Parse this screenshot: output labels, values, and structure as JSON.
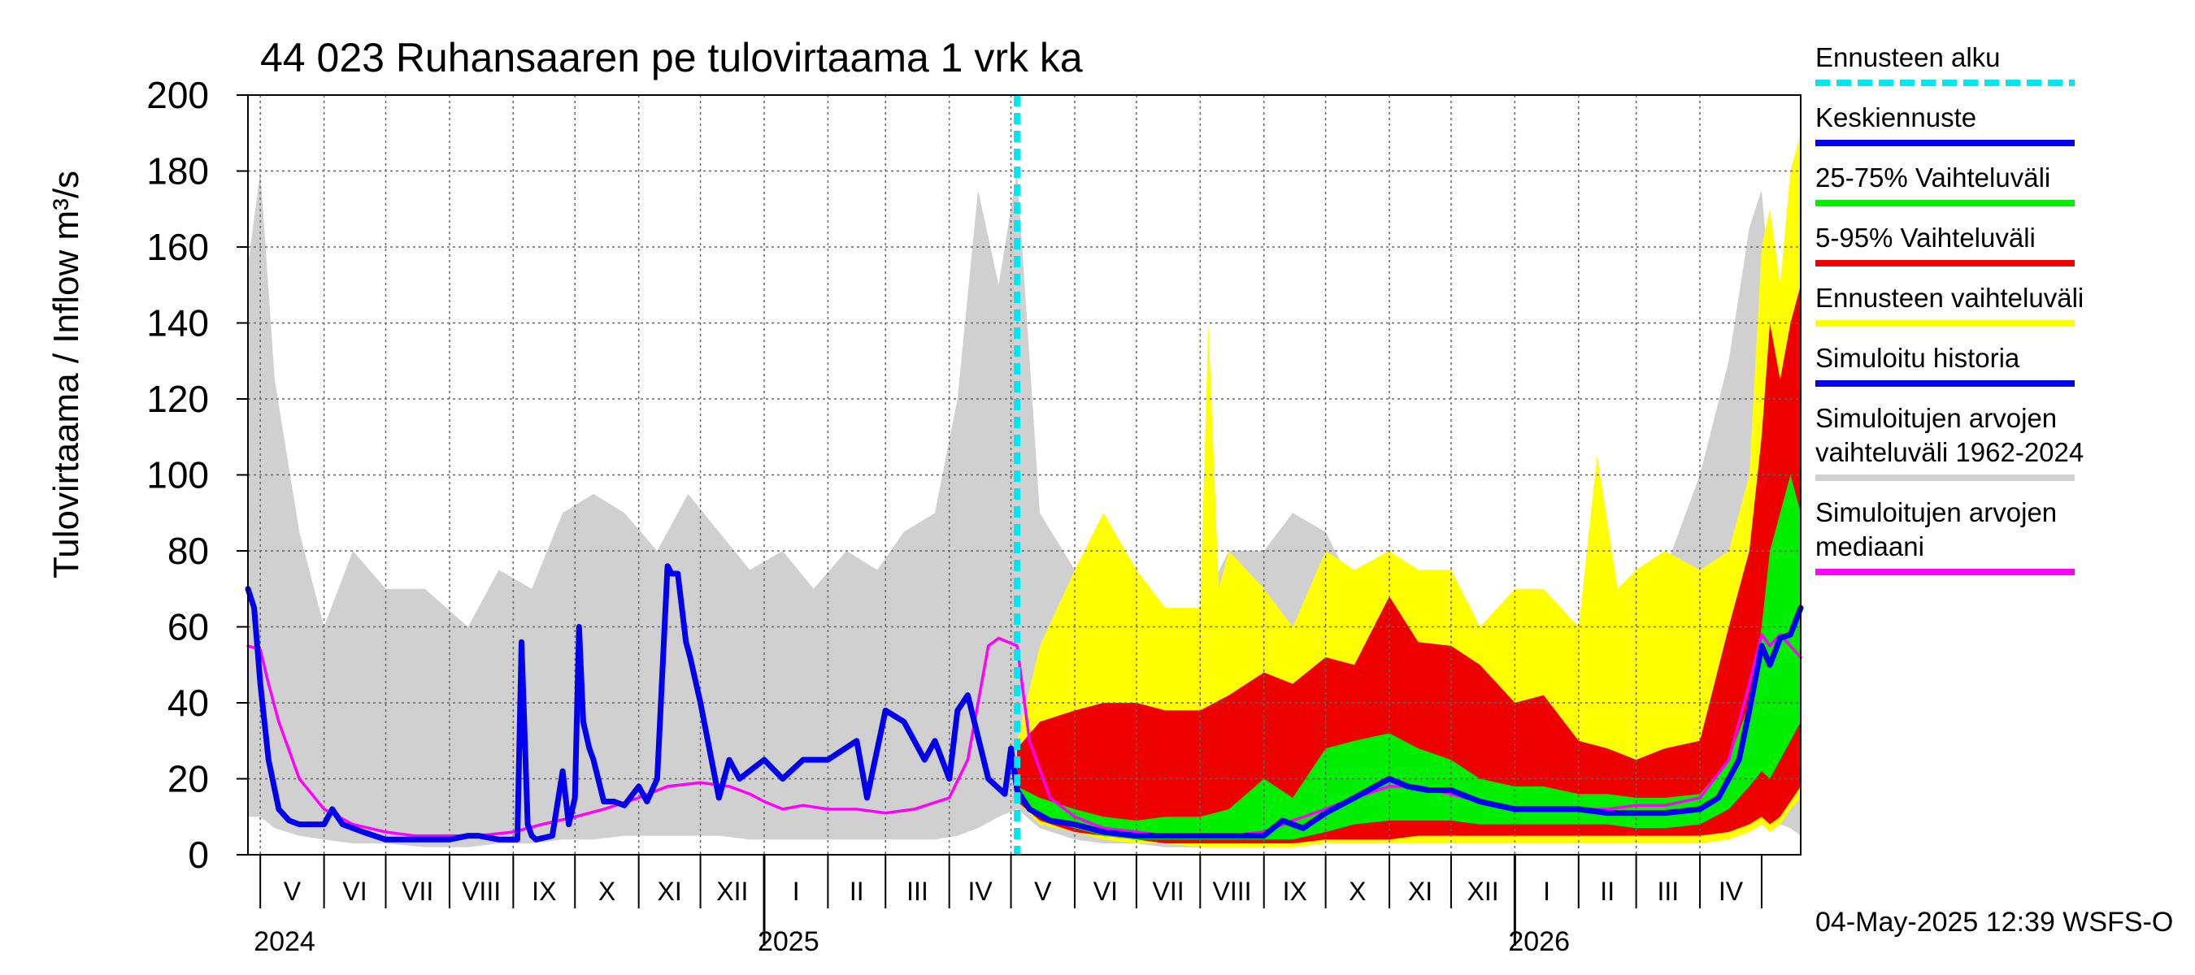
{
  "chart_data": {
    "type": "area",
    "title": "44 023 Ruhansaaren pe tulovirtaama 1 vrk ka",
    "ylabel": "Tulovirtaama / Inflow    m³/s",
    "ylim": [
      0,
      200
    ],
    "yticks": [
      0,
      20,
      40,
      60,
      80,
      100,
      120,
      140,
      160,
      180,
      200
    ],
    "xlim": [
      "2024-04-25",
      "2026-05-20"
    ],
    "grid": true,
    "forecast_start": "2025-05-04",
    "months": [
      {
        "label": "V",
        "start": "2024-05-01"
      },
      {
        "label": "VI",
        "start": "2024-06-01"
      },
      {
        "label": "VII",
        "start": "2024-07-01"
      },
      {
        "label": "VIII",
        "start": "2024-08-01"
      },
      {
        "label": "IX",
        "start": "2024-09-01"
      },
      {
        "label": "X",
        "start": "2024-10-01"
      },
      {
        "label": "XI",
        "start": "2024-11-01"
      },
      {
        "label": "XII",
        "start": "2024-12-01"
      },
      {
        "label": "I",
        "start": "2025-01-01"
      },
      {
        "label": "II",
        "start": "2025-02-01"
      },
      {
        "label": "III",
        "start": "2025-03-01"
      },
      {
        "label": "IV",
        "start": "2025-04-01"
      },
      {
        "label": "V",
        "start": "2025-05-01"
      },
      {
        "label": "VI",
        "start": "2025-06-01"
      },
      {
        "label": "VII",
        "start": "2025-07-01"
      },
      {
        "label": "VIII",
        "start": "2025-08-01"
      },
      {
        "label": "IX",
        "start": "2025-09-01"
      },
      {
        "label": "X",
        "start": "2025-10-01"
      },
      {
        "label": "XI",
        "start": "2025-11-01"
      },
      {
        "label": "XII",
        "start": "2025-12-01"
      },
      {
        "label": "I",
        "start": "2026-01-01"
      },
      {
        "label": "II",
        "start": "2026-02-01"
      },
      {
        "label": "III",
        "start": "2026-03-01"
      },
      {
        "label": "IV",
        "start": "2026-04-01"
      }
    ],
    "years": [
      {
        "label": "2024",
        "at": "2024-05-01"
      },
      {
        "label": "2025",
        "at": "2025-01-01"
      },
      {
        "label": "2026",
        "at": "2026-01-01"
      }
    ],
    "legend": {
      "placement": "right",
      "items": [
        {
          "label": "Ennusteen alku",
          "color": "#00e5ee",
          "style": "dashed"
        },
        {
          "label": "Keskiennuste",
          "color": "#0000ee",
          "style": "line"
        },
        {
          "label": "25-75% Vaihteluväli",
          "color": "#00ee00",
          "style": "line"
        },
        {
          "label": "5-95% Vaihteluväli",
          "color": "#ee0000",
          "style": "line"
        },
        {
          "label": "Ennusteen vaihteluväli",
          "color": "#ffff00",
          "style": "line"
        },
        {
          "label": "Simuloitu historia",
          "color": "#0000ee",
          "style": "line"
        },
        {
          "label": "Simuloitujen arvojen vaihteluväli 1962-2024",
          "lines": [
            "Simuloitujen arvojen",
            "vaihteluväli 1962-2024"
          ],
          "color": "#d0d0d0",
          "style": "line"
        },
        {
          "label": "Simuloitujen arvojen mediaani",
          "lines": [
            "Simuloitujen arvojen",
            "mediaani"
          ],
          "color": "#ff00ff",
          "style": "line"
        }
      ]
    },
    "timestamp": "04-May-2025 12:39 WSFS-O",
    "series": [
      {
        "name": "Simuloitujen arvojen vaihteluväli 1962-2024",
        "kind": "band",
        "color": "#d0d0d0",
        "x": [
          "2024-04-25",
          "2024-05-01",
          "2024-05-08",
          "2024-05-20",
          "2024-06-01",
          "2024-06-15",
          "2024-07-01",
          "2024-07-20",
          "2024-08-10",
          "2024-08-25",
          "2024-09-10",
          "2024-09-25",
          "2024-10-10",
          "2024-10-25",
          "2024-11-10",
          "2024-11-25",
          "2024-12-10",
          "2024-12-25",
          "2025-01-10",
          "2025-01-25",
          "2025-02-10",
          "2025-02-25",
          "2025-03-10",
          "2025-03-25",
          "2025-04-05",
          "2025-04-15",
          "2025-04-25",
          "2025-05-04",
          "2025-05-15",
          "2025-06-01",
          "2025-06-15",
          "2025-07-01",
          "2025-07-15",
          "2025-08-01",
          "2025-08-15",
          "2025-09-01",
          "2025-09-15",
          "2025-10-01",
          "2025-10-15",
          "2025-11-01",
          "2025-11-15",
          "2025-12-01",
          "2025-12-15",
          "2026-01-01",
          "2026-01-15",
          "2026-02-01",
          "2026-02-15",
          "2026-03-01",
          "2026-03-15",
          "2026-04-01",
          "2026-04-15",
          "2026-04-25",
          "2026-05-01",
          "2026-05-05",
          "2026-05-10",
          "2026-05-15",
          "2026-05-20"
        ],
        "low": [
          10,
          10,
          7,
          5,
          4,
          3,
          3,
          2,
          2,
          3,
          3,
          4,
          4,
          5,
          5,
          5,
          5,
          4,
          4,
          4,
          4,
          4,
          4,
          4,
          5,
          7,
          10,
          12,
          7,
          4,
          3,
          3,
          2,
          2,
          3,
          3,
          4,
          4,
          5,
          5,
          5,
          5,
          4,
          4,
          4,
          4,
          4,
          4,
          4,
          5,
          7,
          10,
          12,
          10,
          8,
          7,
          5
        ],
        "high": [
          155,
          180,
          125,
          85,
          60,
          80,
          70,
          70,
          60,
          75,
          70,
          90,
          95,
          90,
          80,
          95,
          85,
          75,
          80,
          70,
          80,
          75,
          85,
          90,
          120,
          175,
          150,
          180,
          90,
          75,
          60,
          60,
          60,
          65,
          80,
          80,
          90,
          85,
          70,
          65,
          75,
          70,
          60,
          55,
          60,
          55,
          55,
          60,
          75,
          100,
          130,
          165,
          175,
          150,
          135,
          110,
          90
        ]
      },
      {
        "name": "Ennusteen vaihteluväli",
        "kind": "band",
        "color": "#ffff00",
        "x": [
          "2025-05-04",
          "2025-05-15",
          "2025-06-01",
          "2025-06-15",
          "2025-07-01",
          "2025-07-15",
          "2025-08-01",
          "2025-08-05",
          "2025-08-10",
          "2025-08-15",
          "2025-09-01",
          "2025-09-15",
          "2025-10-01",
          "2025-10-15",
          "2025-11-01",
          "2025-11-15",
          "2025-12-01",
          "2025-12-15",
          "2026-01-01",
          "2026-01-15",
          "2026-02-01",
          "2026-02-10",
          "2026-02-20",
          "2026-03-01",
          "2026-03-15",
          "2026-04-01",
          "2026-04-15",
          "2026-04-25",
          "2026-05-01",
          "2026-05-05",
          "2026-05-10",
          "2026-05-15",
          "2026-05-20"
        ],
        "low": [
          14,
          8,
          6,
          4,
          3,
          3,
          2,
          2,
          2,
          2,
          2,
          2,
          3,
          3,
          3,
          3,
          3,
          3,
          3,
          3,
          3,
          3,
          3,
          3,
          3,
          3,
          4,
          6,
          8,
          6,
          8,
          12,
          15
        ],
        "high": [
          30,
          55,
          75,
          90,
          75,
          65,
          65,
          140,
          70,
          80,
          70,
          60,
          80,
          75,
          80,
          75,
          75,
          60,
          70,
          70,
          60,
          105,
          70,
          75,
          80,
          75,
          80,
          100,
          160,
          170,
          150,
          180,
          190
        ]
      },
      {
        "name": "5-95% Vaihteluväli",
        "kind": "band",
        "color": "#ee0000",
        "x": [
          "2025-05-04",
          "2025-05-15",
          "2025-06-01",
          "2025-06-15",
          "2025-07-01",
          "2025-07-15",
          "2025-08-01",
          "2025-08-15",
          "2025-09-01",
          "2025-09-15",
          "2025-10-01",
          "2025-10-15",
          "2025-11-01",
          "2025-11-15",
          "2025-12-01",
          "2025-12-15",
          "2026-01-01",
          "2026-01-15",
          "2026-02-01",
          "2026-02-15",
          "2026-03-01",
          "2026-03-15",
          "2026-04-01",
          "2026-04-15",
          "2026-04-25",
          "2026-05-01",
          "2026-05-05",
          "2026-05-10",
          "2026-05-15",
          "2026-05-20"
        ],
        "low": [
          14,
          9,
          6,
          5,
          4,
          3,
          3,
          3,
          3,
          3,
          4,
          4,
          4,
          5,
          5,
          5,
          5,
          5,
          5,
          5,
          5,
          5,
          5,
          6,
          8,
          10,
          8,
          10,
          14,
          18
        ],
        "high": [
          28,
          35,
          38,
          40,
          40,
          38,
          38,
          42,
          48,
          45,
          52,
          50,
          68,
          56,
          55,
          50,
          40,
          42,
          30,
          28,
          25,
          28,
          30,
          60,
          80,
          110,
          140,
          125,
          140,
          150
        ]
      },
      {
        "name": "25-75% Vaihteluväli",
        "kind": "band",
        "color": "#00ee00",
        "x": [
          "2025-05-04",
          "2025-05-15",
          "2025-06-01",
          "2025-06-15",
          "2025-07-01",
          "2025-07-15",
          "2025-08-01",
          "2025-08-15",
          "2025-09-01",
          "2025-09-15",
          "2025-10-01",
          "2025-10-15",
          "2025-11-01",
          "2025-11-15",
          "2025-12-01",
          "2025-12-15",
          "2026-01-01",
          "2026-01-15",
          "2026-02-01",
          "2026-02-15",
          "2026-03-01",
          "2026-03-15",
          "2026-04-01",
          "2026-04-15",
          "2026-04-25",
          "2026-05-01",
          "2026-05-05",
          "2026-05-10",
          "2026-05-15",
          "2026-05-20"
        ],
        "low": [
          15,
          10,
          7,
          5,
          4,
          4,
          4,
          4,
          4,
          4,
          6,
          8,
          9,
          9,
          9,
          8,
          8,
          8,
          8,
          8,
          7,
          7,
          8,
          12,
          18,
          22,
          20,
          25,
          30,
          35
        ],
        "high": [
          18,
          15,
          12,
          10,
          9,
          10,
          10,
          12,
          20,
          15,
          28,
          30,
          32,
          28,
          25,
          20,
          18,
          18,
          16,
          16,
          15,
          15,
          16,
          25,
          40,
          60,
          80,
          90,
          100,
          90
        ]
      },
      {
        "name": "Simuloitujen arvojen mediaani",
        "kind": "line",
        "color": "#ff00ff",
        "x": [
          "2024-04-25",
          "2024-05-01",
          "2024-05-05",
          "2024-05-10",
          "2024-05-20",
          "2024-06-01",
          "2024-06-15",
          "2024-07-01",
          "2024-07-15",
          "2024-08-01",
          "2024-08-15",
          "2024-09-01",
          "2024-09-15",
          "2024-10-01",
          "2024-10-15",
          "2024-11-01",
          "2024-11-15",
          "2024-12-01",
          "2024-12-15",
          "2024-12-25",
          "2025-01-01",
          "2025-01-10",
          "2025-01-20",
          "2025-02-01",
          "2025-02-15",
          "2025-03-01",
          "2025-03-15",
          "2025-04-01",
          "2025-04-10",
          "2025-04-15",
          "2025-04-20",
          "2025-04-25",
          "2025-05-04",
          "2025-05-10",
          "2025-05-20",
          "2025-06-01",
          "2025-06-15",
          "2025-07-01",
          "2025-07-15",
          "2025-08-01",
          "2025-08-15",
          "2025-09-01",
          "2025-09-15",
          "2025-10-01",
          "2025-10-15",
          "2025-11-01",
          "2025-11-15",
          "2025-12-01",
          "2025-12-15",
          "2026-01-01",
          "2026-01-15",
          "2026-02-01",
          "2026-02-15",
          "2026-03-01",
          "2026-03-15",
          "2026-04-01",
          "2026-04-15",
          "2026-04-25",
          "2026-05-01",
          "2026-05-05",
          "2026-05-10",
          "2026-05-15",
          "2026-05-20"
        ],
        "y": [
          55,
          54,
          45,
          35,
          20,
          12,
          8,
          6,
          5,
          5,
          5,
          6,
          8,
          10,
          12,
          15,
          18,
          19,
          18,
          16,
          14,
          12,
          13,
          12,
          12,
          11,
          12,
          15,
          25,
          40,
          55,
          57,
          55,
          30,
          15,
          10,
          7,
          6,
          5,
          5,
          5,
          6,
          9,
          12,
          15,
          18,
          18,
          16,
          14,
          12,
          12,
          12,
          12,
          13,
          13,
          15,
          25,
          45,
          58,
          55,
          58,
          55,
          52
        ]
      },
      {
        "name": "Simuloitu historia",
        "kind": "line",
        "color": "#0000ee",
        "x": [
          "2024-04-25",
          "2024-04-28",
          "2024-05-01",
          "2024-05-05",
          "2024-05-10",
          "2024-05-15",
          "2024-05-20",
          "2024-05-28",
          "2024-06-01",
          "2024-06-05",
          "2024-06-10",
          "2024-06-20",
          "2024-07-01",
          "2024-07-15",
          "2024-08-01",
          "2024-08-10",
          "2024-08-15",
          "2024-08-25",
          "2024-09-01",
          "2024-09-03",
          "2024-09-05",
          "2024-09-08",
          "2024-09-10",
          "2024-09-12",
          "2024-09-20",
          "2024-09-25",
          "2024-09-28",
          "2024-10-01",
          "2024-10-03",
          "2024-10-05",
          "2024-10-08",
          "2024-10-10",
          "2024-10-15",
          "2024-10-20",
          "2024-10-25",
          "2024-11-01",
          "2024-11-05",
          "2024-11-10",
          "2024-11-15",
          "2024-11-17",
          "2024-11-20",
          "2024-11-24",
          "2024-11-26",
          "2024-12-01",
          "2024-12-10",
          "2024-12-15",
          "2024-12-20",
          "2025-01-01",
          "2025-01-10",
          "2025-01-20",
          "2025-02-01",
          "2025-02-15",
          "2025-02-20",
          "2025-03-01",
          "2025-03-10",
          "2025-03-20",
          "2025-03-25",
          "2025-04-01",
          "2025-04-05",
          "2025-04-10",
          "2025-04-20",
          "2025-04-28",
          "2025-05-01",
          "2025-05-04"
        ],
        "y": [
          70,
          65,
          45,
          25,
          12,
          9,
          8,
          8,
          8,
          12,
          8,
          6,
          4,
          4,
          4,
          5,
          5,
          4,
          4,
          4,
          56,
          8,
          5,
          4,
          5,
          22,
          8,
          15,
          60,
          35,
          28,
          25,
          14,
          14,
          13,
          18,
          14,
          20,
          76,
          74,
          74,
          56,
          52,
          40,
          15,
          25,
          20,
          25,
          20,
          25,
          25,
          30,
          15,
          38,
          35,
          25,
          30,
          20,
          38,
          42,
          20,
          16,
          28,
          17
        ]
      },
      {
        "name": "Keskiennuste",
        "kind": "line",
        "color": "#0000ee",
        "x": [
          "2025-05-04",
          "2025-05-10",
          "2025-05-20",
          "2025-06-01",
          "2025-06-15",
          "2025-07-01",
          "2025-07-15",
          "2025-08-01",
          "2025-08-15",
          "2025-09-01",
          "2025-09-10",
          "2025-09-20",
          "2025-10-01",
          "2025-10-15",
          "2025-11-01",
          "2025-11-10",
          "2025-11-20",
          "2025-12-01",
          "2025-12-15",
          "2026-01-01",
          "2026-01-15",
          "2026-02-01",
          "2026-02-15",
          "2026-03-01",
          "2026-03-15",
          "2026-04-01",
          "2026-04-10",
          "2026-04-20",
          "2026-04-25",
          "2026-05-01",
          "2026-05-05",
          "2026-05-10",
          "2026-05-15",
          "2026-05-20"
        ],
        "y": [
          17,
          12,
          9,
          8,
          6,
          5,
          5,
          5,
          5,
          5,
          9,
          7,
          11,
          15,
          20,
          18,
          17,
          17,
          14,
          12,
          12,
          12,
          11,
          11,
          11,
          12,
          15,
          25,
          38,
          55,
          50,
          57,
          58,
          65
        ]
      }
    ]
  }
}
